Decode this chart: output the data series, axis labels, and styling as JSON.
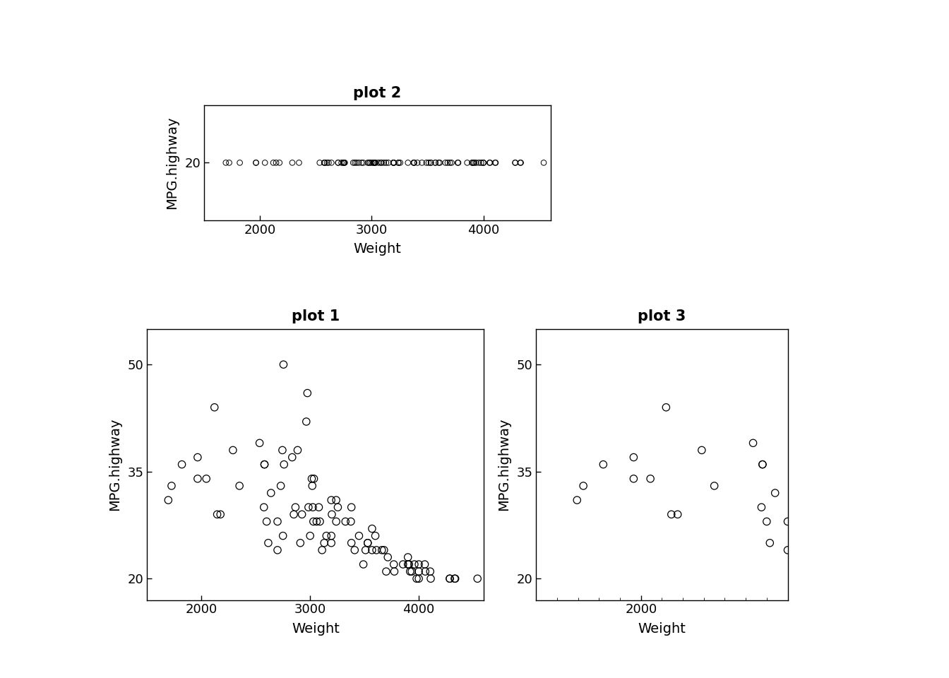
{
  "weight": [
    1695,
    1725,
    1820,
    1965,
    1965,
    2045,
    2350,
    2575,
    2175,
    2580,
    2600,
    2835,
    3000,
    2985,
    3035,
    2145,
    2290,
    2535,
    2640,
    2615,
    3030,
    3080,
    2750,
    2850,
    3110,
    3200,
    3325,
    2700,
    2925,
    3130,
    3195,
    3240,
    3195,
    3150,
    3240,
    3195,
    3410,
    3380,
    3610,
    3380,
    3700,
    3450,
    3490,
    3920,
    3900,
    3935,
    3910,
    3715,
    3570,
    4110,
    3775,
    4060,
    3960,
    3660,
    3255,
    3375,
    3600,
    3680,
    3530,
    3510,
    4000,
    3855,
    4055,
    3900,
    3570,
    3770,
    3980,
    4000,
    4000,
    4105,
    4285,
    4285,
    4330,
    4335,
    4540,
    3530,
    2580,
    3025,
    2910,
    3090,
    2755,
    2965,
    2975,
    2120,
    2865,
    3015,
    2760,
    2730,
    2885,
    3020,
    3060,
    2745,
    2700
  ],
  "mpg_highway": [
    31,
    33,
    36,
    37,
    34,
    34,
    33,
    30,
    29,
    36,
    28,
    37,
    26,
    30,
    34,
    29,
    38,
    39,
    32,
    25,
    28,
    30,
    26,
    29,
    24,
    29,
    28,
    24,
    29,
    25,
    31,
    31,
    25,
    26,
    28,
    26,
    24,
    30,
    24,
    25,
    21,
    26,
    22,
    21,
    22,
    21,
    22,
    23,
    24,
    20,
    21,
    21,
    22,
    24,
    30,
    28,
    26,
    24,
    25,
    24,
    22,
    22,
    22,
    23,
    27,
    22,
    20,
    21,
    20,
    21,
    20,
    20,
    20,
    20,
    20,
    25,
    36,
    30,
    25,
    28,
    50,
    42,
    46,
    44,
    30,
    34,
    36,
    33,
    38,
    33,
    28,
    38,
    28
  ],
  "title1": "plot 1",
  "title2": "plot 2",
  "title3": "plot 3",
  "xlabel": "Weight",
  "ylabel": "MPG.highway",
  "background_color": "#ffffff",
  "text_color": "#000000"
}
